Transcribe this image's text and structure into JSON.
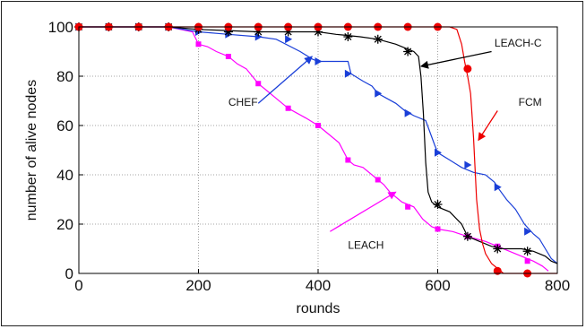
{
  "chart_data": {
    "type": "line",
    "title": "",
    "xlabel": "rounds",
    "ylabel": "number of alive nodes",
    "xlim": [
      0,
      800
    ],
    "ylim": [
      0,
      100
    ],
    "xticks": [
      "0",
      "200",
      "400",
      "600",
      "800"
    ],
    "yticks": [
      "0",
      "20",
      "40",
      "60",
      "80",
      "100"
    ],
    "grid": true,
    "series": [
      {
        "name": "LEACH",
        "color": "#ff00ff",
        "marker": "square",
        "points": [
          [
            0,
            100
          ],
          [
            50,
            100
          ],
          [
            100,
            100
          ],
          [
            150,
            100
          ],
          [
            170,
            99
          ],
          [
            190,
            98
          ],
          [
            200,
            93
          ],
          [
            215,
            92
          ],
          [
            230,
            90
          ],
          [
            250,
            88
          ],
          [
            265,
            85
          ],
          [
            280,
            83
          ],
          [
            300,
            77
          ],
          [
            315,
            74
          ],
          [
            330,
            71
          ],
          [
            350,
            67
          ],
          [
            365,
            65
          ],
          [
            380,
            63
          ],
          [
            400,
            60
          ],
          [
            410,
            58
          ],
          [
            420,
            56
          ],
          [
            435,
            53
          ],
          [
            450,
            46
          ],
          [
            460,
            44
          ],
          [
            475,
            43
          ],
          [
            490,
            40
          ],
          [
            500,
            38
          ],
          [
            510,
            36
          ],
          [
            520,
            33
          ],
          [
            540,
            29
          ],
          [
            560,
            27
          ],
          [
            575,
            22
          ],
          [
            590,
            19
          ],
          [
            600,
            18
          ],
          [
            625,
            17
          ],
          [
            650,
            15
          ],
          [
            680,
            13
          ],
          [
            700,
            11
          ],
          [
            720,
            9
          ],
          [
            740,
            7
          ],
          [
            760,
            5
          ],
          [
            775,
            3
          ],
          [
            785,
            1
          ]
        ],
        "markers": [
          [
            0,
            100
          ],
          [
            50,
            100
          ],
          [
            100,
            100
          ],
          [
            150,
            100
          ],
          [
            200,
            93
          ],
          [
            250,
            88
          ],
          [
            300,
            77
          ],
          [
            350,
            67
          ],
          [
            400,
            60
          ],
          [
            450,
            46
          ],
          [
            500,
            38
          ],
          [
            550,
            27
          ],
          [
            600,
            18
          ],
          [
            650,
            15
          ],
          [
            700,
            11
          ],
          [
            750,
            5
          ]
        ]
      },
      {
        "name": "CHEF",
        "color": "#1a3fd8",
        "marker": "triangle-right",
        "points": [
          [
            0,
            100
          ],
          [
            150,
            100
          ],
          [
            200,
            98
          ],
          [
            250,
            97
          ],
          [
            300,
            96
          ],
          [
            330,
            95
          ],
          [
            370,
            90
          ],
          [
            390,
            87
          ],
          [
            400,
            86
          ],
          [
            450,
            86
          ],
          [
            455,
            81
          ],
          [
            475,
            78
          ],
          [
            490,
            76
          ],
          [
            500,
            73
          ],
          [
            515,
            71
          ],
          [
            530,
            69
          ],
          [
            545,
            66
          ],
          [
            560,
            64
          ],
          [
            580,
            62
          ],
          [
            595,
            52
          ],
          [
            600,
            49
          ],
          [
            620,
            46
          ],
          [
            640,
            43
          ],
          [
            660,
            41
          ],
          [
            680,
            40
          ],
          [
            695,
            37
          ],
          [
            700,
            35
          ],
          [
            715,
            30
          ],
          [
            730,
            26
          ],
          [
            745,
            20
          ],
          [
            760,
            16
          ],
          [
            770,
            14
          ],
          [
            780,
            10
          ],
          [
            790,
            6
          ],
          [
            800,
            4
          ]
        ],
        "markers": [
          [
            0,
            100
          ],
          [
            50,
            100
          ],
          [
            100,
            100
          ],
          [
            150,
            100
          ],
          [
            200,
            98
          ],
          [
            250,
            97
          ],
          [
            300,
            96
          ],
          [
            350,
            95
          ],
          [
            400,
            86
          ],
          [
            450,
            81
          ],
          [
            500,
            73
          ],
          [
            550,
            65
          ],
          [
            600,
            49
          ],
          [
            650,
            44
          ],
          [
            700,
            35
          ],
          [
            750,
            17
          ]
        ]
      },
      {
        "name": "LEACH-C",
        "color": "#000000",
        "marker": "star",
        "points": [
          [
            0,
            100
          ],
          [
            150,
            100
          ],
          [
            200,
            99
          ],
          [
            300,
            98
          ],
          [
            400,
            98
          ],
          [
            430,
            97
          ],
          [
            470,
            96
          ],
          [
            500,
            95
          ],
          [
            530,
            93
          ],
          [
            550,
            91
          ],
          [
            560,
            90
          ],
          [
            568,
            88
          ],
          [
            572,
            80
          ],
          [
            576,
            65
          ],
          [
            580,
            45
          ],
          [
            584,
            33
          ],
          [
            590,
            29
          ],
          [
            600,
            27
          ],
          [
            620,
            25
          ],
          [
            640,
            20
          ],
          [
            650,
            15
          ],
          [
            670,
            13
          ],
          [
            690,
            11
          ],
          [
            710,
            10
          ],
          [
            740,
            10
          ],
          [
            760,
            9
          ],
          [
            780,
            7
          ],
          [
            790,
            5
          ],
          [
            800,
            4
          ]
        ],
        "markers": [
          [
            0,
            100
          ],
          [
            50,
            100
          ],
          [
            100,
            100
          ],
          [
            150,
            100
          ],
          [
            200,
            99
          ],
          [
            250,
            98
          ],
          [
            300,
            98
          ],
          [
            350,
            98
          ],
          [
            400,
            98
          ],
          [
            450,
            96
          ],
          [
            500,
            95
          ],
          [
            550,
            90
          ],
          [
            600,
            28
          ],
          [
            650,
            15
          ],
          [
            700,
            10
          ],
          [
            750,
            9
          ]
        ]
      },
      {
        "name": "FCM",
        "color": "#ee0000",
        "marker": "circle",
        "points": [
          [
            0,
            100
          ],
          [
            620,
            100
          ],
          [
            632,
            99
          ],
          [
            640,
            93
          ],
          [
            645,
            86
          ],
          [
            650,
            80
          ],
          [
            655,
            73
          ],
          [
            660,
            55
          ],
          [
            665,
            30
          ],
          [
            670,
            18
          ],
          [
            675,
            12
          ],
          [
            680,
            8
          ],
          [
            690,
            4
          ],
          [
            700,
            2
          ],
          [
            710,
            0
          ],
          [
            800,
            0
          ]
        ],
        "markers": [
          [
            0,
            100
          ],
          [
            50,
            100
          ],
          [
            100,
            100
          ],
          [
            150,
            100
          ],
          [
            200,
            100
          ],
          [
            250,
            100
          ],
          [
            300,
            100
          ],
          [
            350,
            100
          ],
          [
            400,
            100
          ],
          [
            450,
            100
          ],
          [
            500,
            100
          ],
          [
            550,
            100
          ],
          [
            600,
            100
          ],
          [
            650,
            83
          ],
          [
            700,
            1
          ],
          [
            750,
            0
          ]
        ]
      }
    ],
    "annotations": [
      {
        "text": "LEACH-C",
        "color": "#000000",
        "label_at": [
          695,
          92
        ],
        "arrow_from": [
          690,
          90
        ],
        "arrow_to": [
          572,
          84
        ]
      },
      {
        "text": "FCM",
        "color": "#ee0000",
        "label_at": [
          735,
          68
        ],
        "arrow_from": [
          700,
          66
        ],
        "arrow_to": [
          668,
          54
        ]
      },
      {
        "text": "CHEF",
        "color": "#1a3fd8",
        "label_at": [
          250,
          68
        ],
        "arrow_from": [
          300,
          69
        ],
        "arrow_to": [
          390,
          88
        ]
      },
      {
        "text": "LEACH",
        "color": "#ff00ff",
        "label_at": [
          450,
          10
        ],
        "arrow_from": [
          420,
          17
        ],
        "arrow_to": [
          530,
          33
        ]
      }
    ]
  }
}
